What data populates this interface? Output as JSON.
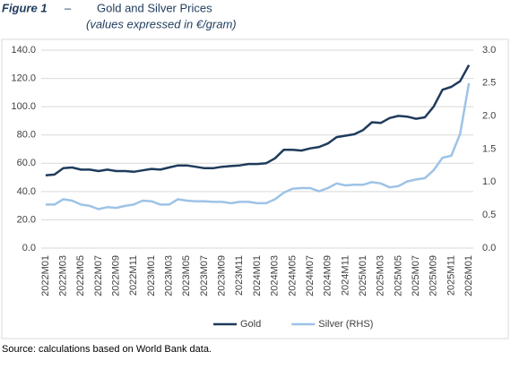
{
  "chart_data": {
    "type": "line",
    "figure_label": "Figure 1",
    "separator": "–",
    "title": "Gold and Silver Prices",
    "subtitle": "(values expressed in €/gram)",
    "source": "Source: calculations based on World Bank data.",
    "categories": [
      "2022M01",
      null,
      "2022M03",
      null,
      "2022M05",
      null,
      "2022M07",
      null,
      "2022M09",
      null,
      "2022M11",
      null,
      "2023M01",
      null,
      "2023M03",
      null,
      "2023M05",
      null,
      "2023M07",
      null,
      "2023M09",
      null,
      "2023M11",
      null,
      "2024M01",
      null,
      "2024M03",
      null,
      "2024M05",
      null,
      "2024M07",
      null,
      "2024M09",
      null,
      "2024M11",
      null,
      "2025M01",
      null,
      "2025M03",
      null,
      "2025M05",
      null,
      "2025M07",
      null,
      "2025M09",
      null,
      "2025M11",
      null,
      "2026M01"
    ],
    "series": [
      {
        "name": "Gold",
        "color": "#1f3b5c",
        "axis": "y",
        "values": [
          51.5,
          52,
          56.5,
          57,
          55.5,
          55.5,
          54.5,
          55.5,
          54.5,
          54.5,
          54,
          55,
          56,
          55.5,
          57,
          58.5,
          58.5,
          57.5,
          56.5,
          56.5,
          57.5,
          58,
          58.5,
          59.5,
          59.5,
          60,
          63.5,
          69.5,
          69.5,
          69,
          70.5,
          71.5,
          74,
          78.5,
          79.5,
          80.5,
          83.5,
          89,
          88.5,
          92,
          93.5,
          93,
          91.5,
          92.5,
          100,
          112,
          114,
          118,
          129.5
        ]
      },
      {
        "name": "Silver (RHS)",
        "color": "#9dc3e6",
        "axis": "y2",
        "values": [
          0.66,
          0.66,
          0.74,
          0.72,
          0.66,
          0.64,
          0.59,
          0.62,
          0.61,
          0.64,
          0.66,
          0.72,
          0.71,
          0.66,
          0.66,
          0.74,
          0.72,
          0.71,
          0.71,
          0.7,
          0.7,
          0.68,
          0.7,
          0.7,
          0.68,
          0.68,
          0.74,
          0.84,
          0.9,
          0.91,
          0.91,
          0.86,
          0.91,
          0.98,
          0.95,
          0.96,
          0.96,
          1.0,
          0.98,
          0.92,
          0.94,
          1.01,
          1.04,
          1.06,
          1.18,
          1.37,
          1.4,
          1.73,
          2.5
        ]
      }
    ],
    "ylim": [
      0,
      140
    ],
    "yticks": [
      {
        "value": 0,
        "label": "0.0"
      },
      {
        "value": 20,
        "label": "20.0"
      },
      {
        "value": 40,
        "label": "40.0"
      },
      {
        "value": 60,
        "label": "60.0"
      },
      {
        "value": 80,
        "label": "80.0"
      },
      {
        "value": 100,
        "label": "100.0"
      },
      {
        "value": 120,
        "label": "120.0"
      },
      {
        "value": 140,
        "label": "140.0"
      }
    ],
    "y2lim": [
      0,
      3
    ],
    "y2ticks": [
      {
        "value": 0,
        "label": "0.0"
      },
      {
        "value": 0.5,
        "label": "0.5"
      },
      {
        "value": 1,
        "label": "1.0"
      },
      {
        "value": 1.5,
        "label": "1.5"
      },
      {
        "value": 2,
        "label": "2.0"
      },
      {
        "value": 2.5,
        "label": "2.5"
      },
      {
        "value": 3,
        "label": "3.0"
      }
    ],
    "grid": true,
    "legend": "bottom"
  }
}
